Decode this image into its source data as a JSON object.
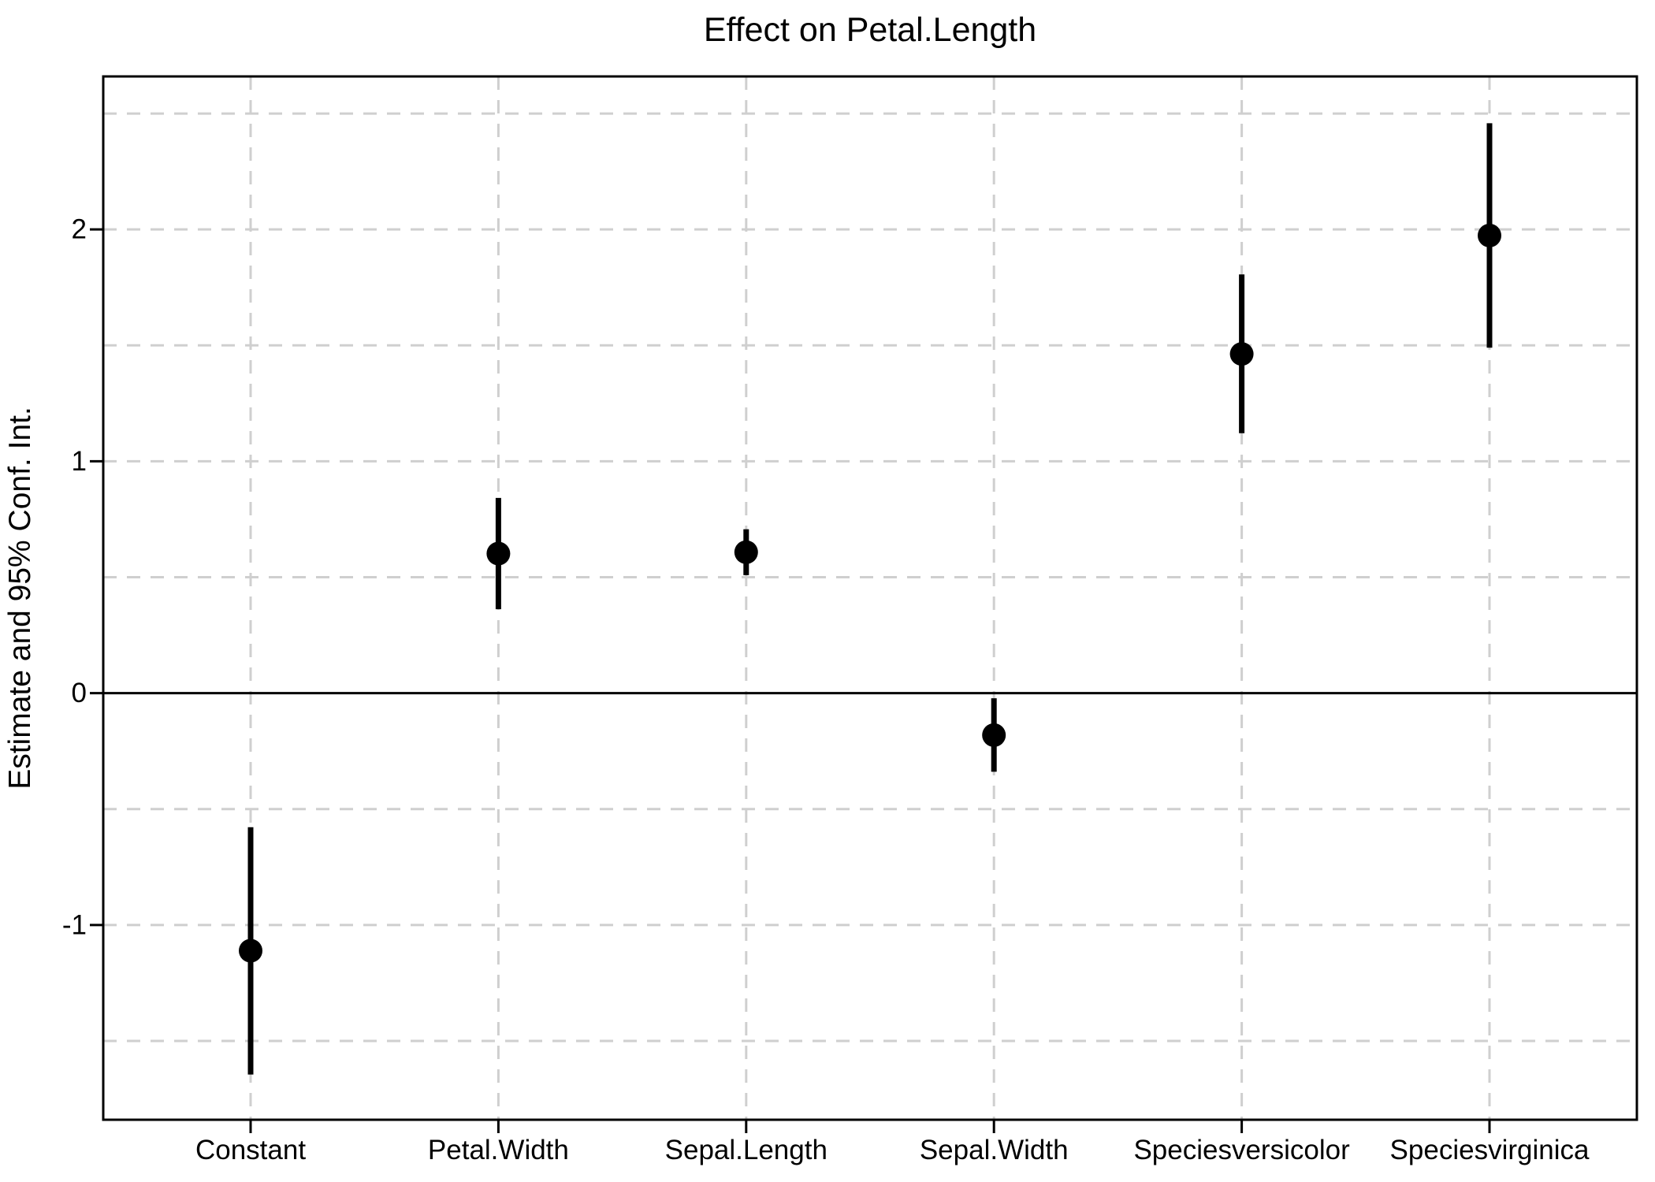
{
  "chart_data": {
    "type": "scatter",
    "subtype": "coefficient-plot-with-error-bars",
    "title": "Effect on Petal.Length",
    "ylabel": "Estimate and 95% Conf. Int.",
    "xlabel": "",
    "categories": [
      "Constant",
      "Petal.Width",
      "Sepal.Length",
      "Sepal.Width",
      "Speciesversicolor",
      "Speciesvirginica"
    ],
    "series": [
      {
        "name": "Estimate and 95% Conf. Int.",
        "estimates": [
          -1.111,
          0.602,
          0.608,
          -0.181,
          1.463,
          1.974
        ],
        "ci_lower": [
          -1.645,
          0.362,
          0.509,
          -0.339,
          1.121,
          1.49
        ],
        "ci_upper": [
          -0.578,
          0.842,
          0.707,
          -0.022,
          1.806,
          2.458
        ]
      }
    ],
    "ylim": [
      -1.84,
      2.66
    ],
    "ytick_values": [
      -1,
      0,
      1,
      2
    ],
    "ytick_labels": [
      "-1",
      "0",
      "1",
      "2"
    ],
    "grid": {
      "on": true,
      "horizontal_interval": 0.5,
      "vertical_at_categories": true,
      "style": "dashed",
      "color": "#cfcfcf"
    },
    "zero_line": {
      "value": 0,
      "style": "solid",
      "color": "#000000"
    },
    "legend": "none",
    "colors": {
      "point": "#000000",
      "error_bar": "#000000",
      "axis": "#000000",
      "background": "#ffffff"
    }
  }
}
